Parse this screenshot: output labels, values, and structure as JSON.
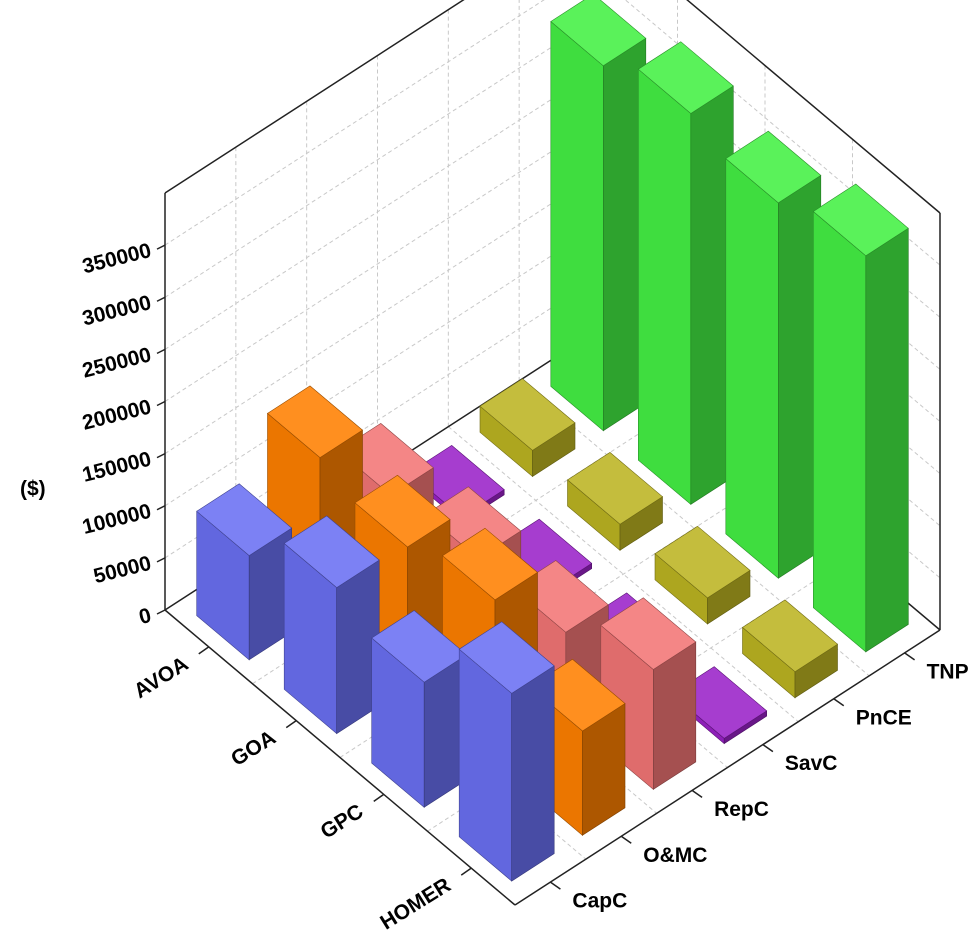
{
  "chart_data": {
    "type": "bar3d",
    "z_label": "($)",
    "categories": [
      "AVOA",
      "GOA",
      "GPC",
      "HOMER"
    ],
    "series": [
      {
        "name": "CapC",
        "color": "#6a70f2",
        "values": [
          100000,
          140000,
          120000,
          180000
        ]
      },
      {
        "name": "O&MC",
        "color": "#ff8000",
        "values": [
          150000,
          135000,
          155000,
          100000
        ]
      },
      {
        "name": "RepC",
        "color": "#f27575",
        "values": [
          70000,
          80000,
          80000,
          115000
        ]
      },
      {
        "name": "SavC",
        "color": "#9a22c8",
        "values": [
          5000,
          5000,
          5000,
          5000
        ]
      },
      {
        "name": "PnCE",
        "color": "#bcb422",
        "values": [
          25000,
          25000,
          25000,
          25000
        ]
      },
      {
        "name": "TNPC",
        "color": "#44f044",
        "values": [
          350000,
          375000,
          360000,
          380000
        ]
      }
    ],
    "zlim": [
      0,
      400000
    ],
    "zticks": [
      0,
      50000,
      100000,
      150000,
      200000,
      250000,
      300000,
      350000
    ],
    "grid": true
  }
}
